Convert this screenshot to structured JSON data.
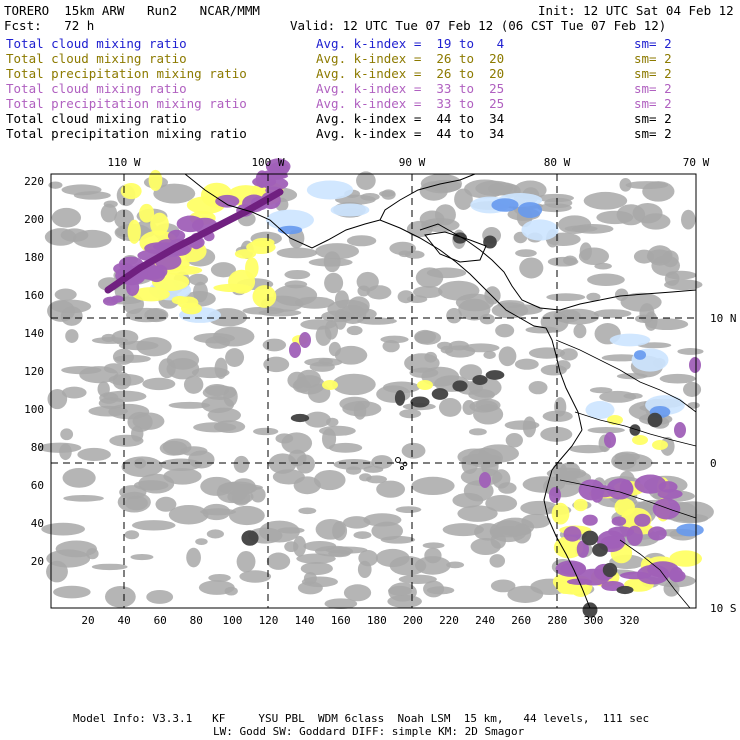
{
  "header": {
    "model": "TORERO  15km ARW   Run2   NCAR/MMM",
    "init": "Init: 12 UTC Sat 04 Feb 12",
    "fcst": "Fcst:   72 h",
    "valid": "Valid: 12 UTC Tue 07 Feb 12 (06 CST Tue 07 Feb 12)"
  },
  "legend": [
    {
      "field": "Total cloud mixing ratio",
      "kidx": "Avg. k-index =  19 to   4",
      "sm": "sm= 2",
      "color": "#2020d0"
    },
    {
      "field": "Total cloud mixing ratio",
      "kidx": "Avg. k-index =  26 to  20",
      "sm": "sm= 2",
      "color": "#8c7a00"
    },
    {
      "field": "Total precipitation mixing ratio",
      "kidx": "Avg. k-index =  26 to  20",
      "sm": "sm= 2",
      "color": "#8c7a00"
    },
    {
      "field": "Total cloud mixing ratio",
      "kidx": "Avg. k-index =  33 to  25",
      "sm": "sm= 2",
      "color": "#b060c0"
    },
    {
      "field": "Total precipitation mixing ratio",
      "kidx": "Avg. k-index =  33 to  25",
      "sm": "sm= 2",
      "color": "#b060c0"
    },
    {
      "field": "Total cloud mixing ratio",
      "kidx": "Avg. k-index =  44 to  34",
      "sm": "sm= 2",
      "color": "#000000"
    },
    {
      "field": "Total precipitation mixing ratio",
      "kidx": "Avg. k-index =  44 to  34",
      "sm": "sm= 2",
      "color": "#000000"
    }
  ],
  "map": {
    "lon_labels": [
      "110 W",
      "100 W",
      "90 W",
      "80 W",
      "70 W"
    ],
    "lat_labels": [
      "10 N",
      "0",
      "10 S"
    ],
    "x_ticks": [
      "20",
      "40",
      "60",
      "80",
      "100",
      "120",
      "140",
      "160",
      "180",
      "200",
      "220",
      "240",
      "260",
      "280",
      "300",
      "320"
    ],
    "y_ticks": [
      "220",
      "200",
      "180",
      "160",
      "140",
      "120",
      "100",
      "80",
      "60",
      "40",
      "20"
    ],
    "colors": {
      "blue": "#6699ee",
      "lightblue": "#cce4ff",
      "yellow": "#ffff66",
      "purple": "#a060b8",
      "darkpurple": "#702080",
      "gray": "#a8a8a8",
      "darkgray": "#404040"
    }
  },
  "footer": {
    "line1": "Model Info: V3.3.1   KF     YSU PBL  WDM 6class  Noah LSM  15 km,   44 levels,  111 sec",
    "line2": "LW: Godd SW: Goddard DIFF: simple KM: 2D Smagor"
  }
}
